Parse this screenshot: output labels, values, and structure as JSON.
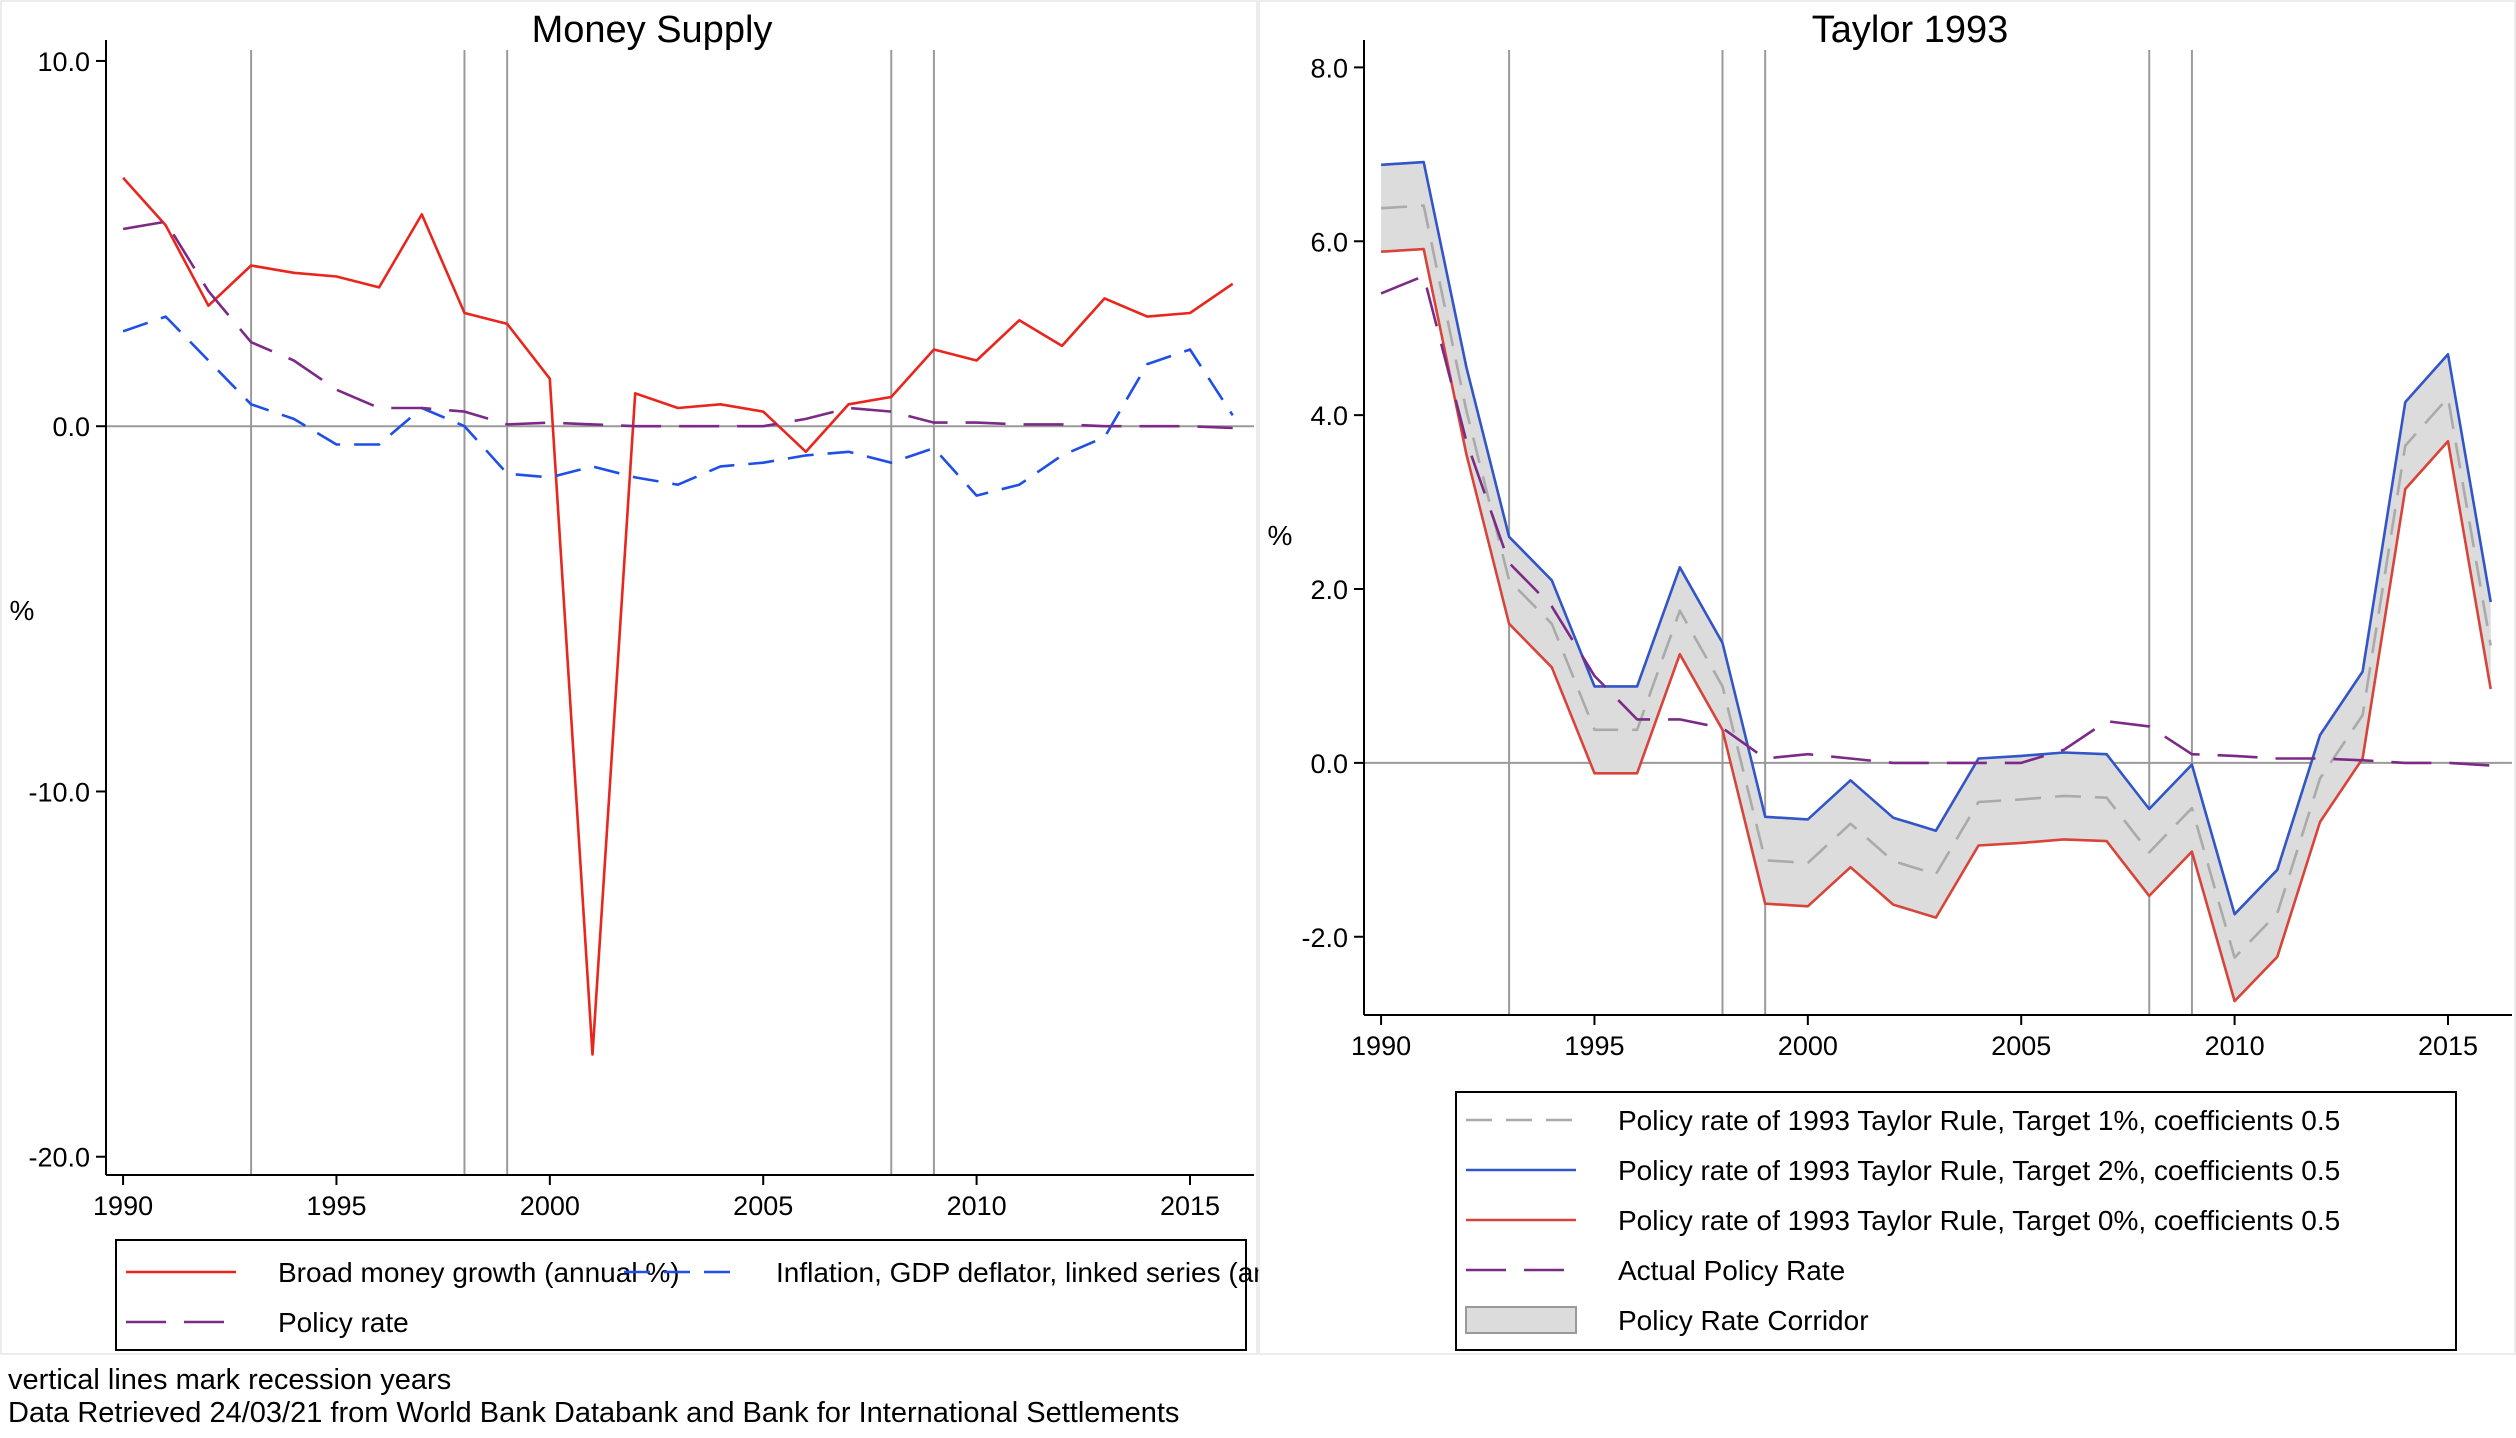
{
  "footnotes": {
    "line1": "vertical lines mark recession years",
    "line2": "Data Retrieved 24/03/21 from World Bank Databank and Bank for International Settlements"
  },
  "colors": {
    "broad_money": "#e8261d",
    "inflation": "#1f4fe6",
    "policy_rate": "#7b2a86",
    "taylor_1pct": "#aaaaaa",
    "taylor_2pct": "#3255c8",
    "taylor_0pct": "#d9443a",
    "corridor_fill": "#dcdcdc",
    "corridor_edge": "#9a9a9a",
    "recession_line": "#9a9a9a",
    "zero_line": "#9a9a9a"
  },
  "chart_data": [
    {
      "type": "line",
      "title": "Money Supply",
      "ylabel": "%",
      "xlabel": "",
      "x": [
        1990,
        1991,
        1992,
        1993,
        1994,
        1995,
        1996,
        1997,
        1998,
        1999,
        2000,
        2001,
        2002,
        2003,
        2004,
        2005,
        2006,
        2007,
        2008,
        2009,
        2010,
        2011,
        2012,
        2013,
        2014,
        2015,
        2016
      ],
      "xlim": [
        1989.6,
        2016.5
      ],
      "ylim": [
        -20.5,
        10.3
      ],
      "xticks": [
        1990,
        1995,
        2000,
        2005,
        2010,
        2015
      ],
      "yticks": [
        10,
        0,
        -10,
        -20
      ],
      "ytick_labels": [
        "10.0",
        "0.0",
        "-10.0",
        "-20.0"
      ],
      "recession_years": [
        1993,
        1998,
        1999,
        2008,
        2009
      ],
      "series": [
        {
          "name": "Broad money growth (annual %)",
          "style": "solid",
          "color_key": "broad_money",
          "values": [
            6.8,
            5.5,
            3.3,
            4.4,
            4.2,
            4.1,
            3.8,
            5.8,
            3.1,
            2.8,
            1.3,
            -17.2,
            0.9,
            0.5,
            0.6,
            0.4,
            -0.7,
            0.6,
            0.8,
            2.1,
            1.8,
            2.9,
            2.2,
            3.5,
            3.0,
            3.1,
            3.9
          ]
        },
        {
          "name": "Inflation, GDP deflator, linked series (annu",
          "style": "dashed",
          "color_key": "inflation",
          "values": [
            2.6,
            3.0,
            1.8,
            0.6,
            0.2,
            -0.5,
            -0.5,
            0.5,
            0.0,
            -1.3,
            -1.4,
            -1.1,
            -1.4,
            -1.6,
            -1.1,
            -1.0,
            -0.8,
            -0.7,
            -1.0,
            -0.6,
            -1.9,
            -1.6,
            -0.8,
            -0.3,
            1.7,
            2.1,
            0.3
          ]
        },
        {
          "name": "Policy rate",
          "style": "longdash",
          "color_key": "policy_rate",
          "values": [
            5.4,
            5.6,
            3.7,
            2.3,
            1.8,
            1.0,
            0.5,
            0.5,
            0.4,
            0.05,
            0.1,
            0.05,
            0.0,
            0.0,
            0.0,
            0.0,
            0.2,
            0.5,
            0.4,
            0.1,
            0.1,
            0.05,
            0.05,
            0.0,
            0.0,
            0.0,
            -0.05
          ]
        }
      ],
      "legend": {
        "position": "bottom",
        "columns": 2
      }
    },
    {
      "type": "line",
      "title": "Taylor 1993",
      "ylabel": "%",
      "xlabel": "",
      "x": [
        1990,
        1991,
        1992,
        1993,
        1994,
        1995,
        1996,
        1997,
        1998,
        1999,
        2000,
        2001,
        2002,
        2003,
        2004,
        2005,
        2006,
        2007,
        2008,
        2009,
        2010,
        2011,
        2012,
        2013,
        2014,
        2015,
        2016
      ],
      "xlim": [
        1989.6,
        2016.5
      ],
      "ylim": [
        -2.9,
        8.2
      ],
      "xticks": [
        1990,
        1995,
        2000,
        2005,
        2010,
        2015
      ],
      "yticks": [
        8,
        6,
        4,
        2,
        0,
        -2
      ],
      "ytick_labels": [
        "8.0",
        "6.0",
        "4.0",
        "2.0",
        "0.0",
        "-2.0"
      ],
      "recession_years": [
        1993,
        1998,
        1999,
        2008,
        2009
      ],
      "series": [
        {
          "name": "Policy rate of 1993 Taylor Rule, Target 1%, coefficients 0.5",
          "style": "dashed",
          "color_key": "taylor_1pct",
          "values": [
            6.38,
            6.41,
            4.05,
            2.1,
            1.6,
            0.38,
            0.38,
            1.75,
            0.88,
            -1.12,
            -1.15,
            -0.7,
            -1.13,
            -1.28,
            -0.45,
            -0.42,
            -0.38,
            -0.4,
            -1.03,
            -0.52,
            -2.24,
            -1.73,
            -0.18,
            0.55,
            3.65,
            4.2,
            1.35
          ]
        },
        {
          "name": "Policy rate of 1993 Taylor Rule, Target 2%, coefficients 0.5",
          "style": "solid",
          "color_key": "taylor_2pct",
          "values": [
            6.88,
            6.91,
            4.55,
            2.6,
            2.1,
            0.88,
            0.88,
            2.25,
            1.38,
            -0.62,
            -0.65,
            -0.2,
            -0.63,
            -0.78,
            0.05,
            0.08,
            0.12,
            0.1,
            -0.53,
            -0.02,
            -1.74,
            -1.23,
            0.32,
            1.05,
            4.15,
            4.7,
            1.85
          ]
        },
        {
          "name": "Policy rate of 1993 Taylor Rule, Target 0%, coefficients 0.5",
          "style": "solid",
          "color_key": "taylor_0pct",
          "values": [
            5.88,
            5.91,
            3.55,
            1.6,
            1.1,
            -0.12,
            -0.12,
            1.25,
            0.38,
            -1.62,
            -1.65,
            -1.2,
            -1.63,
            -1.78,
            -0.95,
            -0.92,
            -0.88,
            -0.9,
            -1.53,
            -1.02,
            -2.74,
            -2.23,
            -0.68,
            0.05,
            3.15,
            3.7,
            0.85
          ]
        },
        {
          "name": "Actual Policy Rate",
          "style": "longdash",
          "color_key": "policy_rate",
          "values": [
            5.4,
            5.6,
            3.7,
            2.3,
            1.8,
            1.0,
            0.5,
            0.5,
            0.4,
            0.05,
            0.1,
            0.05,
            0.0,
            0.0,
            0.0,
            0.0,
            0.15,
            0.48,
            0.42,
            0.1,
            0.08,
            0.05,
            0.05,
            0.03,
            0.0,
            0.0,
            -0.03
          ]
        }
      ],
      "band": {
        "name": "Policy Rate Corridor",
        "lower_series": 2,
        "upper_series": 1,
        "color_key": "corridor_fill"
      },
      "legend": {
        "position": "bottom",
        "columns": 1
      }
    }
  ]
}
